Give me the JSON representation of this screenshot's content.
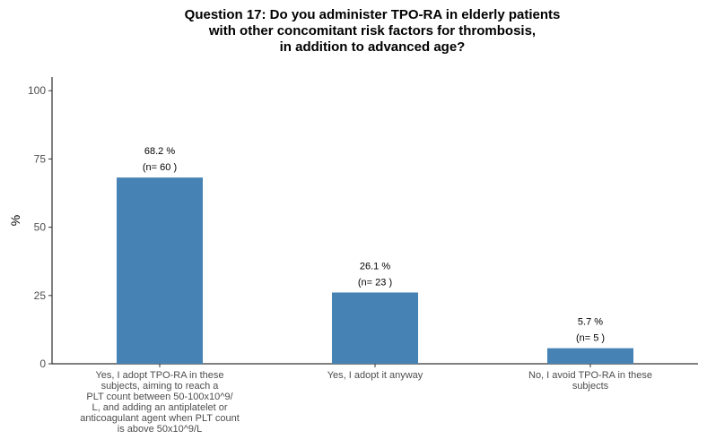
{
  "chart_data": {
    "type": "bar",
    "title_lines": [
      "Question 17: Do you administer TPO-RA in elderly patients",
      "with other concomitant risk factors for thrombosis,",
      "in addition to advanced age?"
    ],
    "ylabel": "%",
    "xlabel": "",
    "ylim": [
      0,
      105
    ],
    "yticks": [
      0,
      25,
      50,
      75,
      100
    ],
    "grid": false,
    "legend": "none",
    "bar_color": "#4682b4",
    "categories": [
      {
        "lines": [
          "Yes, I adopt TPO-RA in these",
          "subjects, aiming to reach a",
          "PLT count between 50-100x10^9/",
          "L, and adding an antiplatelet or",
          "anticoagulant agent when PLT count",
          "is above 50x10^9/L"
        ]
      },
      {
        "lines": [
          "Yes, I adopt it anyway"
        ]
      },
      {
        "lines": [
          "No, I avoid TPO-RA in these",
          "subjects"
        ]
      }
    ],
    "values": [
      68.2,
      26.1,
      5.7
    ],
    "value_labels": [
      "68.2 %",
      "26.1 %",
      "5.7 %"
    ],
    "n_labels": [
      "(n= 60 )",
      "(n= 23 )",
      "(n= 5 )"
    ]
  }
}
